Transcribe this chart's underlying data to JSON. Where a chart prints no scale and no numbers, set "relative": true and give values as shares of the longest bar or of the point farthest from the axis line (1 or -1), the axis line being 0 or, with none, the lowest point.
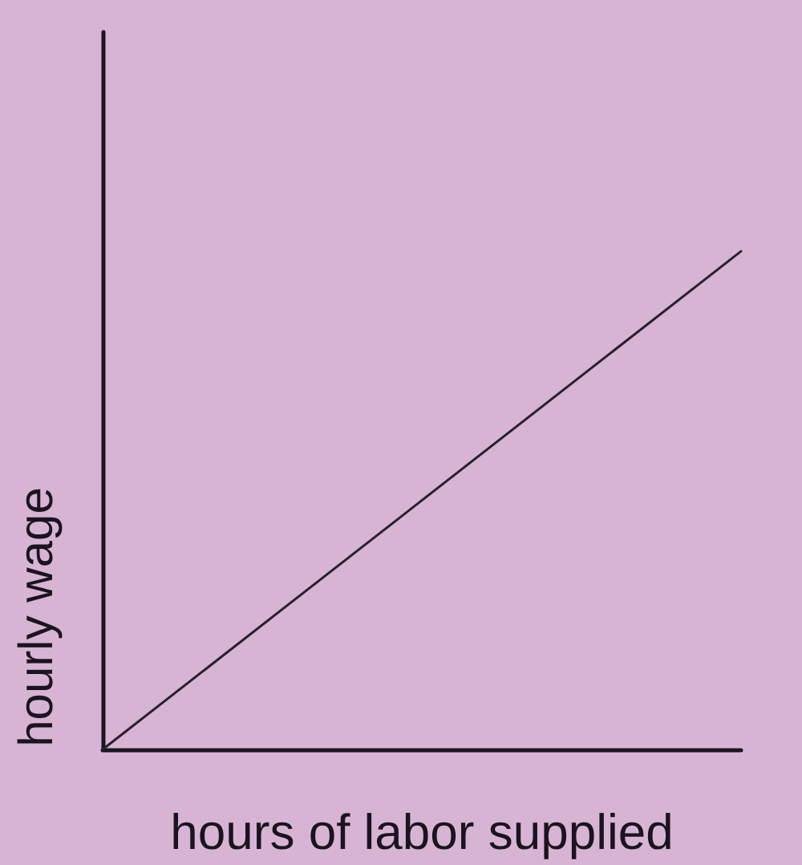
{
  "chart_data": {
    "type": "line",
    "xlabel": "hours of labor supplied",
    "ylabel": "hourly wage",
    "relative": true,
    "categories": [
      null,
      null
    ],
    "series": [
      {
        "color": "#2a2030",
        "values": [
          0,
          1
        ]
      }
    ],
    "grid": false,
    "marker": "none",
    "line_style": "solid"
  }
}
